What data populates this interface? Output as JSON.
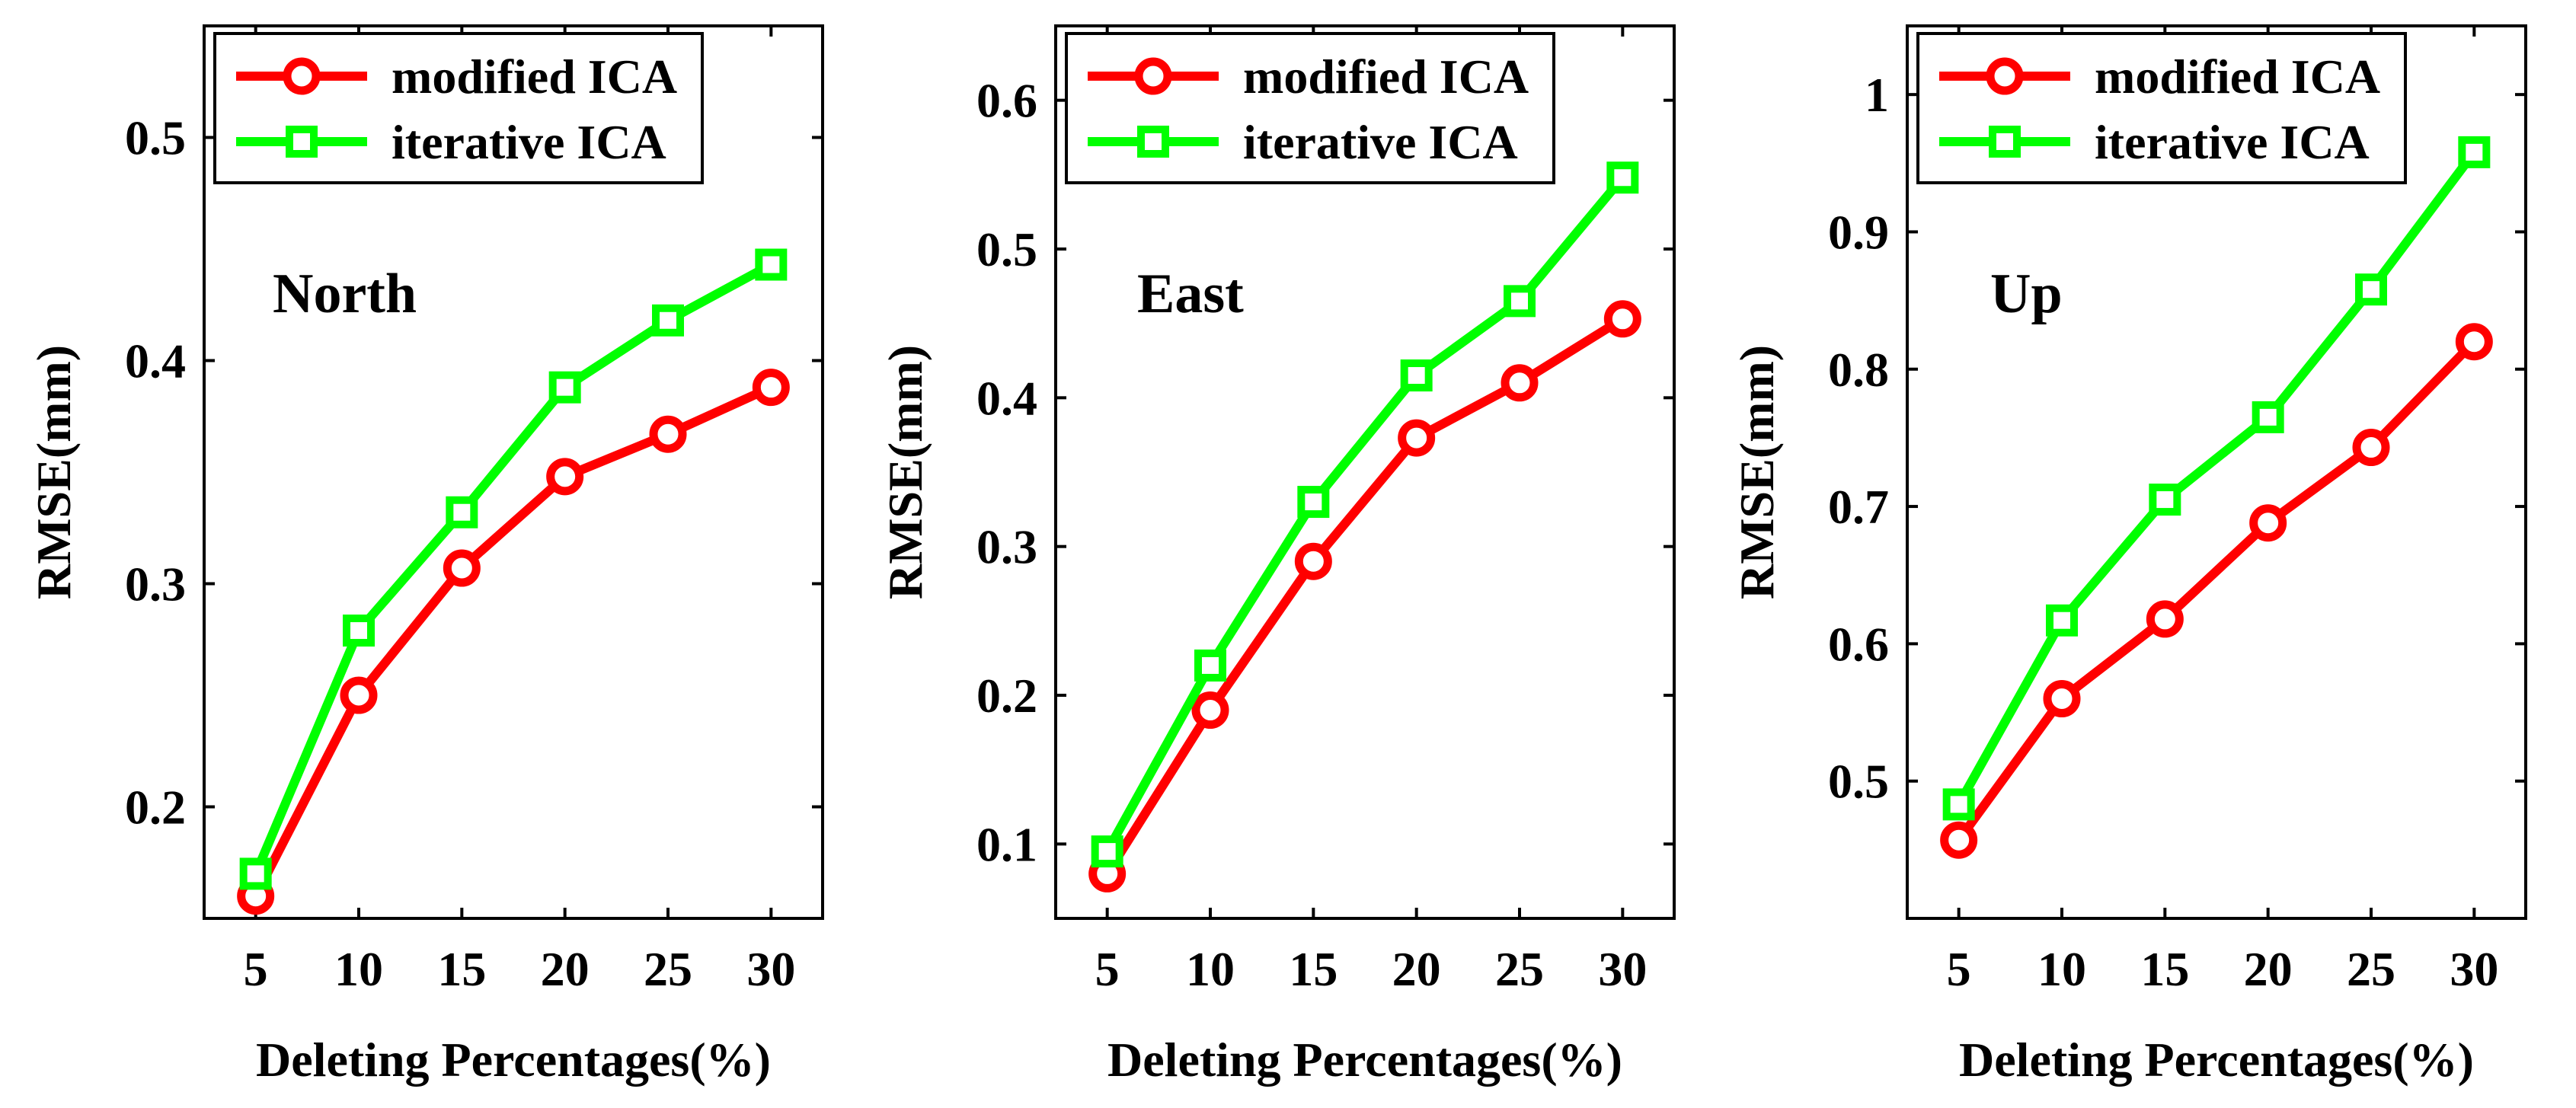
{
  "chart_data": [
    {
      "type": "line",
      "annotation": "North",
      "xlabel": "Deleting Percentages(%)",
      "ylabel": "RMSE(mm)",
      "x": [
        5,
        10,
        15,
        20,
        25,
        30
      ],
      "xlim": [
        2.5,
        32.5
      ],
      "ylim": [
        0.15,
        0.55
      ],
      "yticks": [
        0.2,
        0.3,
        0.4,
        0.5
      ],
      "ytick_labels": [
        "0.2",
        "0.3",
        "0.4",
        "0.5"
      ],
      "grid": false,
      "legend_position": "top-left",
      "series": [
        {
          "name": "modified ICA",
          "color": "#ff0000",
          "marker": "circle",
          "values": [
            0.16,
            0.25,
            0.307,
            0.348,
            0.367,
            0.388
          ]
        },
        {
          "name": "iterative ICA",
          "color": "#00ff00",
          "marker": "square",
          "values": [
            0.17,
            0.279,
            0.332,
            0.388,
            0.418,
            0.443
          ]
        }
      ]
    },
    {
      "type": "line",
      "annotation": "East",
      "xlabel": "Deleting Percentages(%)",
      "ylabel": "RMSE(mm)",
      "x": [
        5,
        10,
        15,
        20,
        25,
        30
      ],
      "xlim": [
        2.5,
        32.5
      ],
      "ylim": [
        0.05,
        0.65
      ],
      "yticks": [
        0.1,
        0.2,
        0.3,
        0.4,
        0.5,
        0.6
      ],
      "ytick_labels": [
        "0.1",
        "0.2",
        "0.3",
        "0.4",
        "0.5",
        "0.6"
      ],
      "grid": false,
      "legend_position": "top-left",
      "series": [
        {
          "name": "modified ICA",
          "color": "#ff0000",
          "marker": "circle",
          "values": [
            0.08,
            0.19,
            0.29,
            0.373,
            0.41,
            0.453
          ]
        },
        {
          "name": "iterative ICA",
          "color": "#00ff00",
          "marker": "square",
          "values": [
            0.095,
            0.22,
            0.33,
            0.415,
            0.465,
            0.548
          ]
        }
      ]
    },
    {
      "type": "line",
      "annotation": "Up",
      "xlabel": "Deleting Percentages(%)",
      "ylabel": "RMSE(mm)",
      "x": [
        5,
        10,
        15,
        20,
        25,
        30
      ],
      "xlim": [
        2.5,
        32.5
      ],
      "ylim": [
        0.4,
        1.05
      ],
      "yticks": [
        0.5,
        0.6,
        0.7,
        0.8,
        0.9,
        1.0
      ],
      "ytick_labels": [
        "0.5",
        "0.6",
        "0.7",
        "0.8",
        "0.9",
        "1"
      ],
      "grid": false,
      "legend_position": "top-left",
      "series": [
        {
          "name": "modified ICA",
          "color": "#ff0000",
          "marker": "circle",
          "values": [
            0.457,
            0.56,
            0.618,
            0.688,
            0.743,
            0.82
          ]
        },
        {
          "name": "iterative ICA",
          "color": "#00ff00",
          "marker": "square",
          "values": [
            0.483,
            0.617,
            0.705,
            0.765,
            0.858,
            0.958
          ]
        }
      ]
    }
  ]
}
